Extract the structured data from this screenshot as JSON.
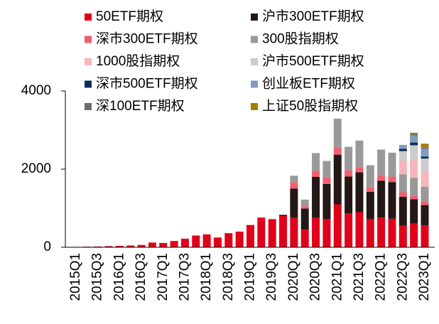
{
  "chart_data": {
    "type": "stacked_bar",
    "categories": [
      "2015Q1",
      null,
      "2015Q3",
      null,
      "2016Q1",
      null,
      "2016Q3",
      null,
      "2017Q1",
      null,
      "2017Q3",
      null,
      "2018Q1",
      null,
      "2018Q3",
      null,
      "2019Q1",
      null,
      "2019Q3",
      null,
      "2020Q1",
      null,
      "2020Q3",
      null,
      "2021Q1",
      null,
      "2021Q3",
      null,
      "2022Q1",
      null,
      "2022Q3",
      null,
      "2023Q1"
    ],
    "series": [
      {
        "name": "50ETF期权",
        "color": "#e1001a",
        "values": [
          10,
          15,
          20,
          30,
          35,
          45,
          60,
          120,
          110,
          160,
          220,
          300,
          330,
          250,
          360,
          400,
          570,
          760,
          720,
          800,
          750,
          450,
          750,
          720,
          1100,
          870,
          900,
          720,
          760,
          730,
          550,
          610,
          560
        ]
      },
      {
        "name": "沪市300ETF期权",
        "color": "#231815",
        "values": [
          0,
          0,
          0,
          0,
          0,
          0,
          0,
          0,
          0,
          0,
          0,
          0,
          0,
          0,
          0,
          0,
          0,
          0,
          0,
          30,
          750,
          540,
          1050,
          900,
          1270,
          940,
          1020,
          700,
          940,
          940,
          740,
          620,
          520
        ]
      },
      {
        "name": "深市300ETF期权",
        "color": "#f2606f",
        "values": [
          0,
          0,
          0,
          0,
          0,
          0,
          0,
          0,
          0,
          0,
          0,
          0,
          0,
          0,
          0,
          0,
          0,
          0,
          0,
          0,
          160,
          60,
          160,
          170,
          190,
          160,
          130,
          120,
          150,
          140,
          120,
          80,
          90
        ]
      },
      {
        "name": "300股指期权",
        "color": "#999999",
        "values": [
          0,
          0,
          0,
          0,
          0,
          0,
          0,
          0,
          0,
          0,
          0,
          0,
          0,
          0,
          0,
          0,
          0,
          0,
          0,
          0,
          170,
          170,
          450,
          420,
          730,
          600,
          680,
          560,
          650,
          610,
          460,
          470,
          380
        ]
      },
      {
        "name": "1000股指期权",
        "color": "#f8b4b9",
        "values": [
          0,
          0,
          0,
          0,
          0,
          0,
          0,
          0,
          0,
          0,
          0,
          0,
          0,
          0,
          0,
          0,
          0,
          0,
          0,
          0,
          0,
          0,
          0,
          0,
          0,
          0,
          0,
          0,
          0,
          0,
          350,
          450,
          400
        ]
      },
      {
        "name": "沪市500ETF期权",
        "color": "#cccccc",
        "values": [
          0,
          0,
          0,
          0,
          0,
          0,
          0,
          0,
          0,
          0,
          0,
          0,
          0,
          0,
          0,
          0,
          0,
          0,
          0,
          0,
          0,
          0,
          0,
          0,
          0,
          0,
          0,
          0,
          0,
          0,
          240,
          380,
          320
        ]
      },
      {
        "name": "深市500ETF期权",
        "color": "#0b2d5c",
        "values": [
          0,
          0,
          0,
          0,
          0,
          0,
          0,
          0,
          0,
          0,
          0,
          0,
          0,
          0,
          0,
          0,
          0,
          0,
          0,
          0,
          0,
          0,
          0,
          0,
          0,
          0,
          0,
          0,
          0,
          0,
          60,
          70,
          50
        ]
      },
      {
        "name": "创业板ETF期权",
        "color": "#7f9cbf",
        "values": [
          0,
          0,
          0,
          0,
          0,
          0,
          0,
          0,
          0,
          0,
          0,
          0,
          0,
          0,
          0,
          0,
          0,
          0,
          0,
          0,
          0,
          0,
          0,
          0,
          0,
          0,
          0,
          0,
          0,
          0,
          100,
          180,
          200
        ]
      },
      {
        "name": "深100ETF期权",
        "color": "#6d6d6d",
        "values": [
          0,
          0,
          0,
          0,
          0,
          0,
          0,
          0,
          0,
          0,
          0,
          0,
          0,
          0,
          0,
          0,
          0,
          0,
          0,
          0,
          0,
          0,
          0,
          0,
          0,
          0,
          0,
          0,
          0,
          0,
          0,
          30,
          30
        ]
      },
      {
        "name": "上证50股指期权",
        "color": "#a67c00",
        "values": [
          0,
          0,
          0,
          0,
          0,
          0,
          0,
          0,
          0,
          0,
          0,
          0,
          0,
          0,
          0,
          0,
          0,
          0,
          0,
          0,
          0,
          0,
          0,
          0,
          0,
          0,
          0,
          0,
          0,
          0,
          0,
          40,
          100
        ]
      }
    ],
    "ylim": [
      0,
      4000
    ],
    "yticks": [
      0,
      2000,
      4000
    ]
  }
}
